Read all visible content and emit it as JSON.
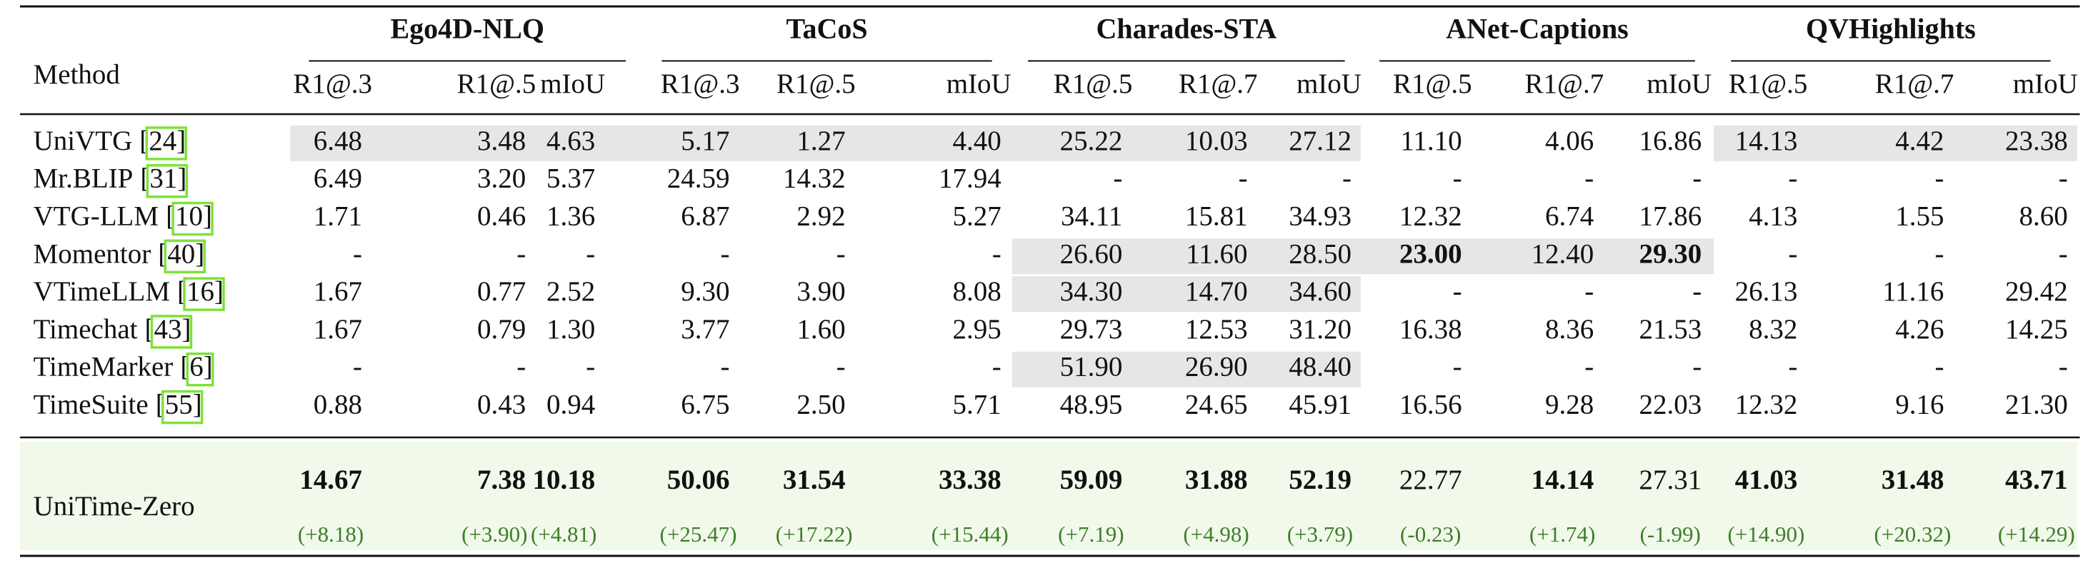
{
  "table": {
    "method_header": "Method",
    "groups": [
      "Ego4D-NLQ",
      "TaCoS",
      "Charades-STA",
      "ANet-Captions",
      "QVHighlights"
    ],
    "columns": [
      "R1@.3",
      "R1@.5",
      "mIoU",
      "R1@.3",
      "R1@.5",
      "mIoU",
      "R1@.5",
      "R1@.7",
      "mIoU",
      "R1@.5",
      "R1@.7",
      "mIoU",
      "R1@.5",
      "R1@.7",
      "mIoU"
    ],
    "rows": [
      {
        "method": "UniVTG",
        "cite": "[24]",
        "values": [
          "6.48",
          "3.48",
          "4.63",
          "5.17",
          "1.27",
          "4.40",
          "25.22",
          "10.03",
          "27.12",
          "11.10",
          "4.06",
          "16.86",
          "14.13",
          "4.42",
          "23.38"
        ]
      },
      {
        "method": "Mr.BLIP",
        "cite": "[31]",
        "values": [
          "6.49",
          "3.20",
          "5.37",
          "24.59",
          "14.32",
          "17.94",
          "-",
          "-",
          "-",
          "-",
          "-",
          "-",
          "-",
          "-",
          "-"
        ]
      },
      {
        "method": "VTG-LLM",
        "cite": "[10]",
        "values": [
          "1.71",
          "0.46",
          "1.36",
          "6.87",
          "2.92",
          "5.27",
          "34.11",
          "15.81",
          "34.93",
          "12.32",
          "6.74",
          "17.86",
          "4.13",
          "1.55",
          "8.60"
        ]
      },
      {
        "method": "Momentor",
        "cite": "[40]",
        "values": [
          "-",
          "-",
          "-",
          "-",
          "-",
          "-",
          "26.60",
          "11.60",
          "28.50",
          "23.00",
          "12.40",
          "29.30",
          "-",
          "-",
          "-"
        ]
      },
      {
        "method": "VTimeLLM",
        "cite": "[16]",
        "values": [
          "1.67",
          "0.77",
          "2.52",
          "9.30",
          "3.90",
          "8.08",
          "34.30",
          "14.70",
          "34.60",
          "-",
          "-",
          "-",
          "26.13",
          "11.16",
          "29.42"
        ]
      },
      {
        "method": "Timechat",
        "cite": "[43]",
        "values": [
          "1.67",
          "0.79",
          "1.30",
          "3.77",
          "1.60",
          "2.95",
          "29.73",
          "12.53",
          "31.20",
          "16.38",
          "8.36",
          "21.53",
          "8.32",
          "4.26",
          "14.25"
        ]
      },
      {
        "method": "TimeMarker",
        "cite": "[6]",
        "values": [
          "-",
          "-",
          "-",
          "-",
          "-",
          "-",
          "51.90",
          "26.90",
          "48.40",
          "-",
          "-",
          "-",
          "-",
          "-",
          "-"
        ]
      },
      {
        "method": "TimeSuite",
        "cite": "[55]",
        "values": [
          "0.88",
          "0.43",
          "0.94",
          "6.75",
          "2.50",
          "5.71",
          "48.95",
          "24.65",
          "45.91",
          "16.56",
          "9.28",
          "22.03",
          "12.32",
          "9.16",
          "21.30"
        ]
      }
    ],
    "ours": {
      "method": "UniTime-Zero",
      "values": [
        "14.67",
        "7.38",
        "10.18",
        "50.06",
        "31.54",
        "33.38",
        "59.09",
        "31.88",
        "52.19",
        "22.77",
        "14.14",
        "27.31",
        "41.03",
        "31.48",
        "43.71"
      ],
      "deltas": [
        "(+8.18)",
        "(+3.90)",
        "(+4.81)",
        "(+25.47)",
        "(+17.22)",
        "(+15.44)",
        "(+7.19)",
        "(+4.98)",
        "(+3.79)",
        "(-0.23)",
        "(+1.74)",
        "(-1.99)",
        "(+14.90)",
        "(+20.32)",
        "(+14.29)"
      ]
    }
  }
}
